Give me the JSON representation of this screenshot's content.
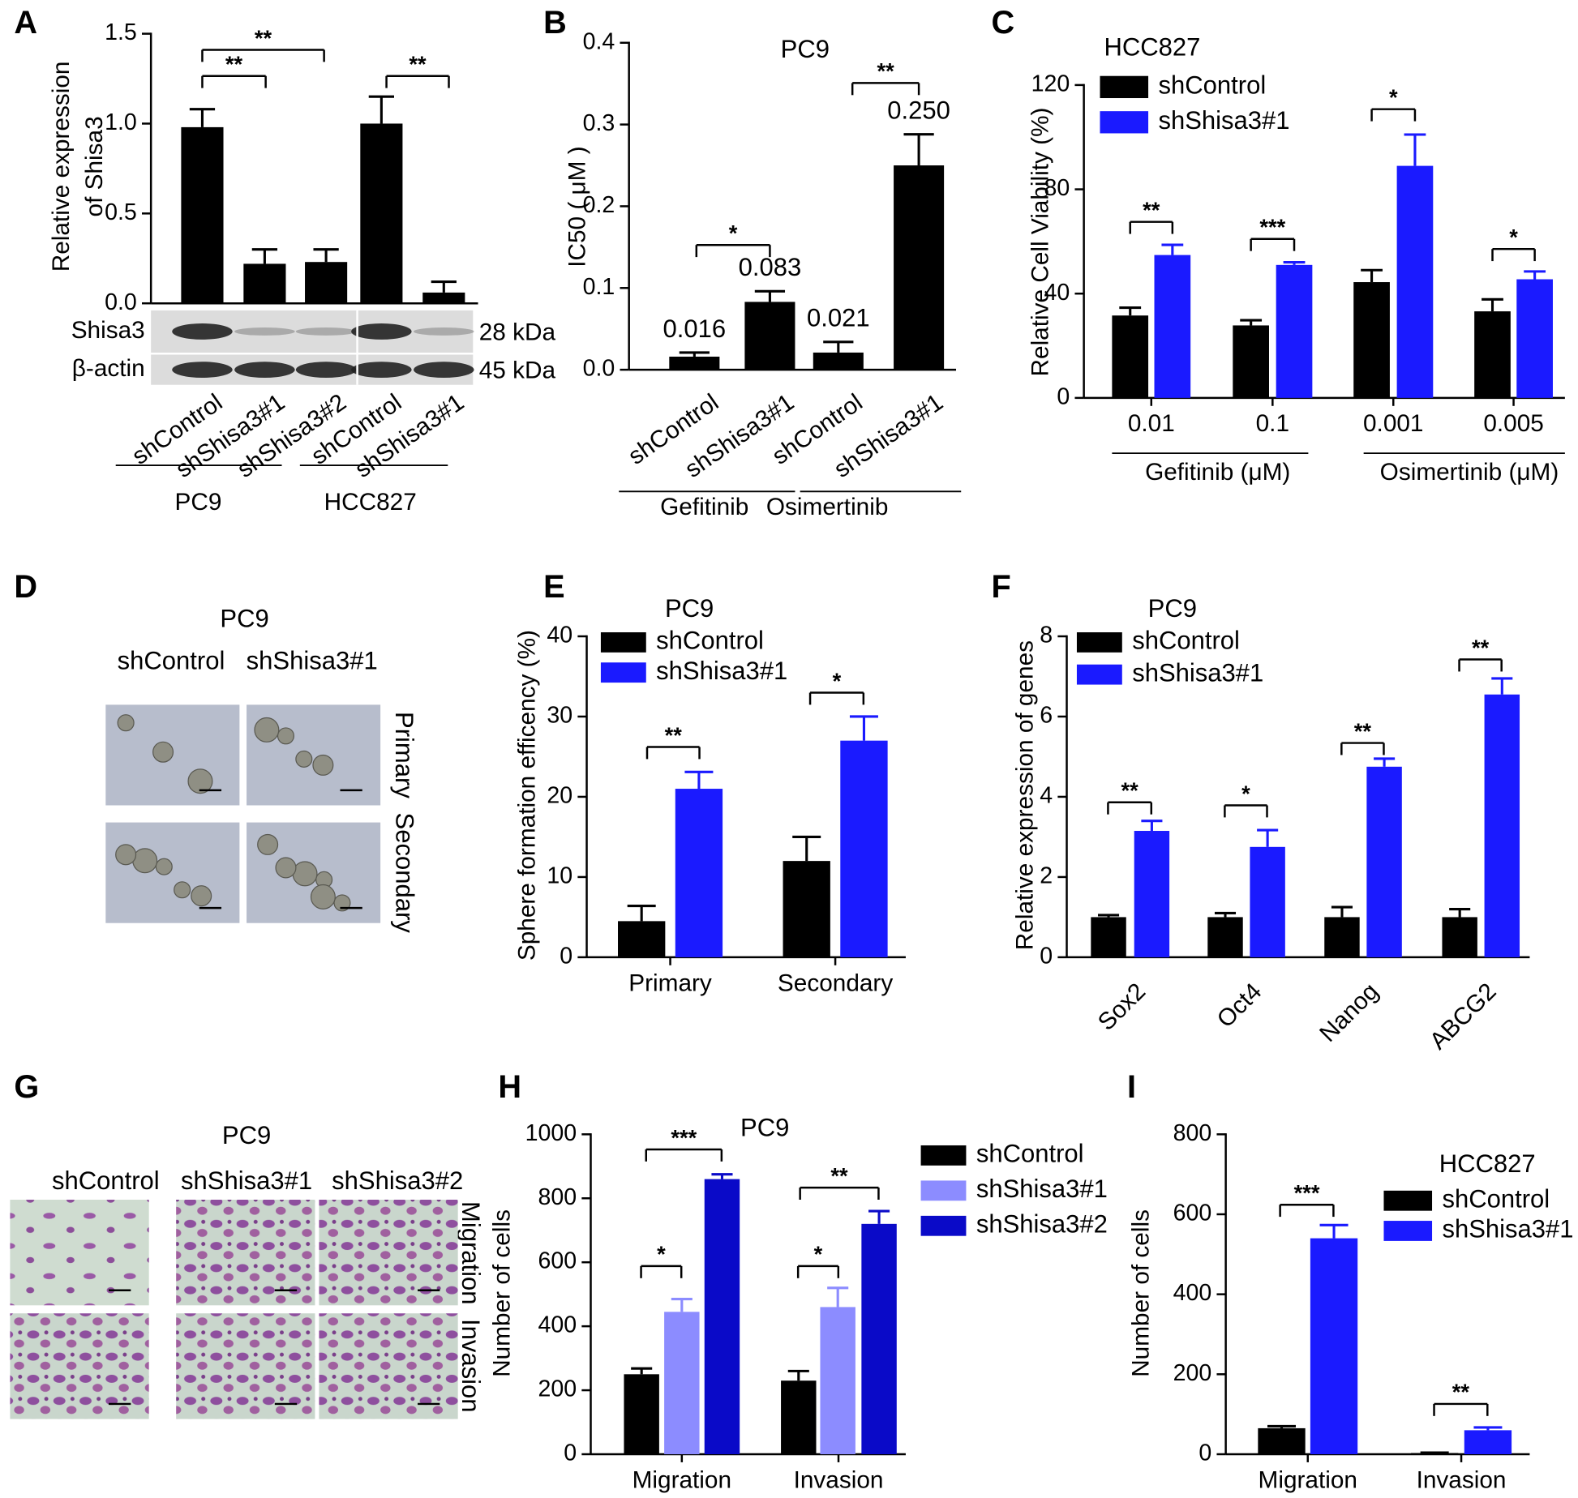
{
  "chart_data": [
    {
      "panel": "A",
      "type": "bar",
      "ylabel": [
        "Relative expression",
        "of Shisa3"
      ],
      "ylim": [
        0,
        1.5
      ],
      "yticks": [
        {
          "value": 0,
          "label": "0.0"
        },
        0.5,
        {
          "value": 1,
          "label": "1.0"
        },
        1.5
      ],
      "categories": [
        "shControl",
        "shShisa3#1",
        "shShisa3#2",
        "shControl",
        "shShisa3#1"
      ],
      "groups": [
        "PC9",
        "HCC827"
      ],
      "series": [
        {
          "color": "#000000",
          "values": [
            0.98,
            0.22,
            0.23,
            1.0,
            0.06
          ],
          "errors": [
            0.1,
            0.08,
            0.07,
            0.15,
            0.06
          ]
        }
      ],
      "significance": [
        "**",
        "**",
        "**"
      ],
      "blot_labels": [
        "Shisa3",
        "β-actin"
      ],
      "blot_sizes": [
        "28 kDa",
        "45 kDa"
      ]
    },
    {
      "panel": "B",
      "type": "bar",
      "title": "PC9",
      "ylabel": "IC50 ( μM )",
      "ylim": [
        0,
        0.4
      ],
      "yticks": [
        {
          "value": 0,
          "label": "0.0"
        },
        0.1,
        0.2,
        0.3,
        0.4
      ],
      "categories": [
        "shControl",
        "shShisa3#1",
        "shControl",
        "shShisa3#1"
      ],
      "groups": [
        "Gefitinib",
        "Osimertinib"
      ],
      "series": [
        {
          "color": "#000000",
          "values": [
            0.016,
            0.083,
            0.021,
            0.25
          ],
          "value_labels": [
            "0.016",
            "0.083",
            "0.021",
            "0.250"
          ],
          "errors": [
            0.005,
            0.013,
            0.013,
            0.038
          ]
        }
      ],
      "significance": [
        "*",
        "**"
      ]
    },
    {
      "panel": "C",
      "type": "bar",
      "title": "HCC827",
      "ylabel": "Relative Cell Viability (%)",
      "ylim": [
        0,
        120
      ],
      "yticks": [
        0,
        40,
        80,
        120
      ],
      "categories": [
        "0.01",
        "0.1",
        "0.001",
        "0.005"
      ],
      "groups": [
        "Gefitinib (μM)",
        "Osimertinib (μM)"
      ],
      "series": [
        {
          "name": "shControl",
          "color": "#000000",
          "values": [
            31.6,
            27.8,
            44.4,
            33.2
          ],
          "errors": [
            3,
            2,
            4.6,
            4.6
          ]
        },
        {
          "name": "shShisa3#1",
          "color": "#1a1aff",
          "values": [
            54.8,
            51,
            89,
            45.5
          ],
          "errors": [
            3.9,
            1,
            12,
            3
          ]
        }
      ],
      "significance": [
        "**",
        "***",
        "*",
        "*"
      ]
    },
    {
      "panel": "E",
      "type": "bar",
      "title": "PC9",
      "ylabel": "Sphere formation efficency (%)",
      "ylim": [
        0,
        40
      ],
      "yticks": [
        0,
        10,
        20,
        30,
        40
      ],
      "categories": [
        "Primary",
        "Secondary"
      ],
      "series": [
        {
          "name": "shControl",
          "color": "#000000",
          "values": [
            4.5,
            12
          ],
          "errors": [
            1.9,
            3
          ]
        },
        {
          "name": "shShisa3#1",
          "color": "#1a1aff",
          "values": [
            21,
            27
          ],
          "errors": [
            2.1,
            3
          ]
        }
      ],
      "significance": [
        "**",
        "*"
      ]
    },
    {
      "panel": "F",
      "type": "bar",
      "title": "PC9",
      "ylabel": "Relative expression of genes",
      "ylim": [
        0,
        8
      ],
      "yticks": [
        0,
        2,
        4,
        6,
        8
      ],
      "categories": [
        "Sox2",
        "Oct4",
        "Nanog",
        "ABCG2"
      ],
      "series": [
        {
          "name": "shControl",
          "color": "#000000",
          "values": [
            1,
            1,
            1,
            1
          ],
          "errors": [
            0.05,
            0.1,
            0.25,
            0.2
          ]
        },
        {
          "name": "shShisa3#1",
          "color": "#1a1aff",
          "values": [
            3.15,
            2.75,
            4.75,
            6.55
          ],
          "errors": [
            0.25,
            0.42,
            0.2,
            0.4
          ]
        }
      ],
      "significance": [
        "**",
        "*",
        "**",
        "**"
      ]
    },
    {
      "panel": "H",
      "type": "bar",
      "title": "PC9",
      "ylabel": "Number of cells",
      "ylim": [
        0,
        1000
      ],
      "yticks": [
        0,
        200,
        400,
        600,
        800,
        1000
      ],
      "categories": [
        "Migration",
        "Invasion"
      ],
      "series": [
        {
          "name": "shControl",
          "color": "#000000",
          "values": [
            250,
            230
          ],
          "errors": [
            18,
            30
          ]
        },
        {
          "name": "shShisa3#1",
          "color": "#8c8cff",
          "values": [
            445,
            460
          ],
          "errors": [
            40,
            60
          ]
        },
        {
          "name": "shShisa3#2",
          "color": "#0a0ac8",
          "values": [
            860,
            720
          ],
          "errors": [
            15,
            40
          ]
        }
      ],
      "significance": [
        "*",
        "***",
        "*",
        "**"
      ]
    },
    {
      "panel": "I",
      "type": "bar",
      "title": "HCC827",
      "ylabel": "Number of cells",
      "ylim": [
        0,
        800
      ],
      "yticks": [
        0,
        200,
        400,
        600,
        800
      ],
      "categories": [
        "Migration",
        "Invasion"
      ],
      "series": [
        {
          "name": "shControl",
          "color": "#000000",
          "values": [
            65,
            3
          ],
          "errors": [
            5,
            1
          ]
        },
        {
          "name": "shShisa3#1",
          "color": "#1a1aff",
          "values": [
            540,
            60
          ],
          "errors": [
            33,
            7
          ]
        }
      ],
      "significance": [
        "***",
        "**"
      ]
    }
  ],
  "image_panels": [
    {
      "panel": "D",
      "title": "PC9",
      "columns": [
        "shControl",
        "shShisa3#1"
      ],
      "rows": [
        "Primary",
        "Secondary"
      ]
    },
    {
      "panel": "G",
      "title": "PC9",
      "columns": [
        "shControl",
        "shShisa3#1",
        "shShisa3#2"
      ],
      "rows": [
        "Migration",
        "Invasion"
      ]
    }
  ]
}
